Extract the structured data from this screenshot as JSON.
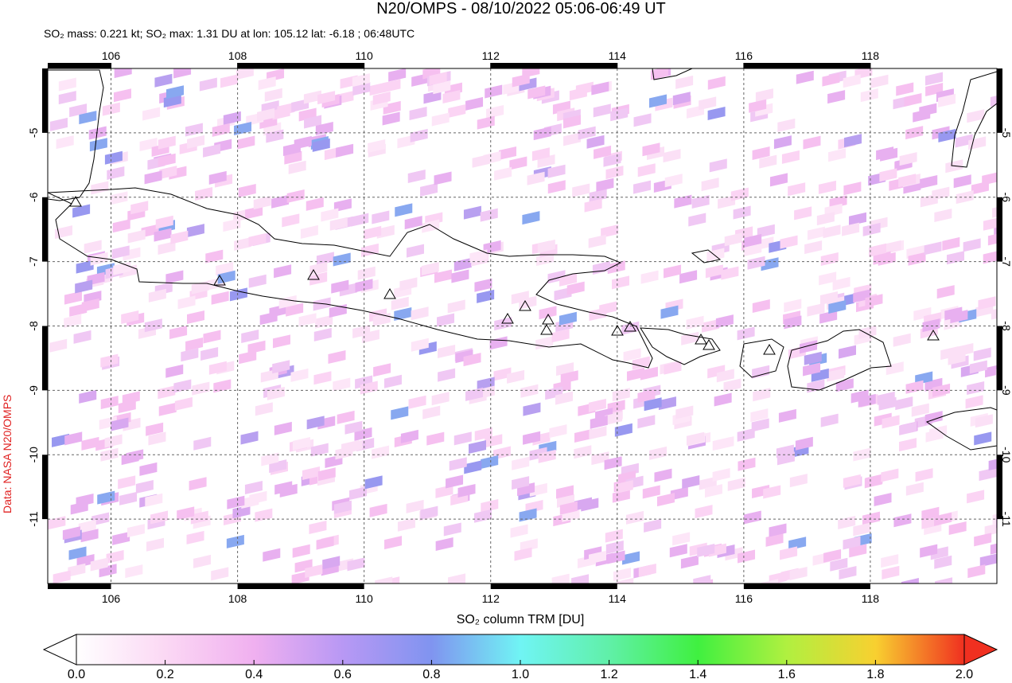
{
  "title": "N20/OMPS - 08/10/2022 05:06-06:49 UT",
  "subtitle": "SO₂ mass: 0.221 kt; SO₂ max: 1.31 DU at lon: 105.12 lat: -6.18 ; 06:48UTC",
  "map": {
    "lonlim": [
      105,
      120
    ],
    "latlim": [
      -4,
      -12
    ],
    "lon_ticks": [
      106,
      108,
      110,
      112,
      114,
      116,
      118
    ],
    "lat_ticks": [
      -5,
      -6,
      -7,
      -8,
      -9,
      -10,
      -11
    ]
  },
  "colorbar": {
    "label": "SO₂ column TRM [DU]",
    "ticks": [
      {
        "value": 0,
        "label": "0.0"
      },
      {
        "value": 0.2,
        "label": "0.2"
      },
      {
        "value": 0.4,
        "label": "0.4"
      },
      {
        "value": 0.6,
        "label": "0.6"
      },
      {
        "value": 0.8,
        "label": "0.8"
      },
      {
        "value": 1,
        "label": "1.0"
      },
      {
        "value": 1.2,
        "label": "1.2"
      },
      {
        "value": 1.4,
        "label": "1.4"
      },
      {
        "value": 1.6,
        "label": "1.6"
      },
      {
        "value": 1.8,
        "label": "1.8"
      },
      {
        "value": 2,
        "label": "2.0"
      }
    ]
  },
  "credit": "Data: NASA N20/OMPS"
}
